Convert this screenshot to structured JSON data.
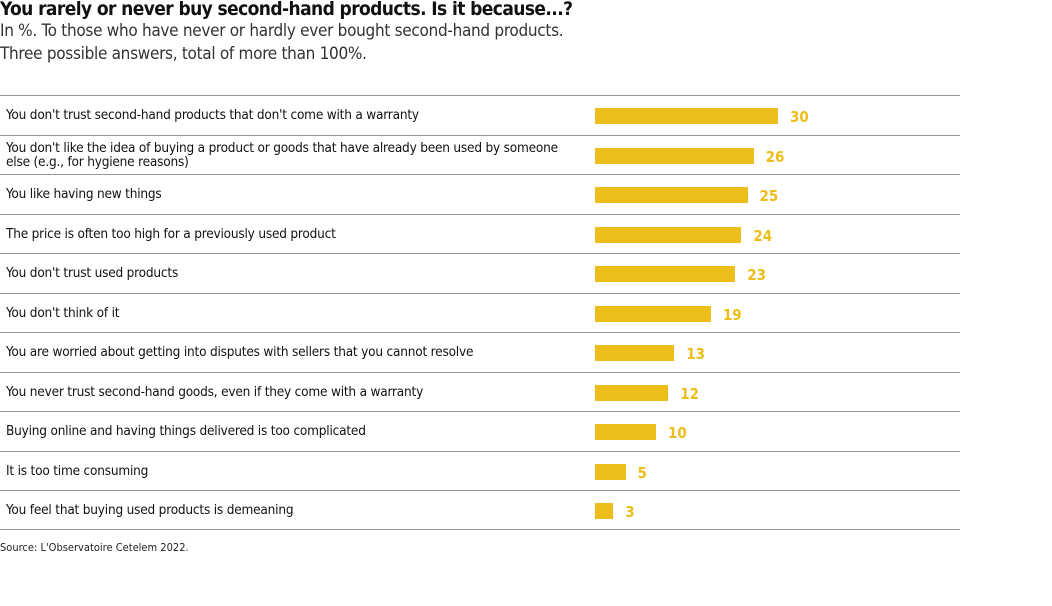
{
  "title": "You rarely or never buy second-hand products. Is it because...?",
  "subtitle_lines": [
    "In %. To those who have never or hardly ever bought second-hand products.",
    "Three possible answers, total of more than 100%."
  ],
  "source": "Source: L'Observatoire Cetelem 2022.",
  "colors": {
    "bar": "#EDBD1A",
    "value": "#EDBD1A"
  },
  "chart_data": {
    "type": "bar",
    "orientation": "horizontal",
    "categories": [
      "You don't trust second-hand products that don't come with a warranty",
      "You don't like the idea of buying a product or goods that have already been used by someone else (e.g., for hygiene reasons)",
      "You like having new things",
      "The price is often too high for a previously used product",
      "You don't trust used products",
      "You don't think of it",
      "You are worried about getting into disputes with sellers that you cannot resolve",
      "You never trust second-hand goods, even if they come with a warranty",
      "Buying online and having things delivered is too complicated",
      "It is too time consuming",
      "You feel that buying used products is demeaning"
    ],
    "values": [
      30,
      26,
      25,
      24,
      23,
      19,
      13,
      12,
      10,
      5,
      3
    ],
    "xlim": [
      0,
      30
    ],
    "grid": false
  }
}
